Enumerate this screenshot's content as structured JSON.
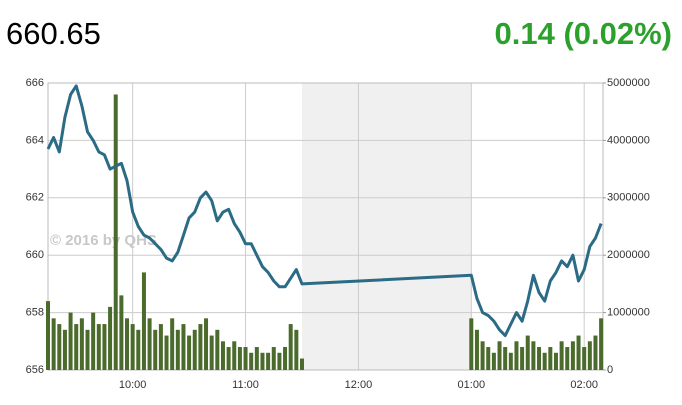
{
  "header": {
    "price": "660.65",
    "change": "0.14 (0.02%)"
  },
  "chart_data": {
    "type": "line",
    "watermark": "© 2016 by QHS",
    "x": [
      555,
      558,
      561,
      564,
      567,
      570,
      573,
      576,
      579,
      582,
      585,
      588,
      591,
      594,
      597,
      600,
      603,
      606,
      609,
      612,
      615,
      618,
      621,
      624,
      627,
      630,
      633,
      636,
      639,
      642,
      645,
      648,
      651,
      654,
      657,
      660,
      663,
      666,
      669,
      672,
      675,
      678,
      681,
      684,
      687,
      690,
      780,
      783,
      786,
      789,
      792,
      795,
      798,
      801,
      804,
      807,
      810,
      813,
      816,
      819,
      822,
      825,
      828,
      831,
      834,
      837,
      840,
      843,
      846,
      849
    ],
    "series": [
      {
        "color": "#2b6b86",
        "values": [
          663.7,
          664.1,
          663.6,
          664.8,
          665.6,
          665.9,
          665.2,
          664.3,
          664.0,
          663.6,
          663.5,
          663.0,
          663.1,
          663.2,
          662.6,
          661.5,
          661.0,
          660.7,
          660.6,
          660.4,
          660.2,
          659.9,
          659.8,
          660.1,
          660.7,
          661.3,
          661.5,
          662.0,
          662.2,
          661.9,
          661.2,
          661.5,
          661.6,
          661.1,
          660.8,
          660.4,
          660.4,
          660.0,
          659.6,
          659.4,
          659.1,
          658.9,
          658.9,
          659.2,
          659.5,
          659.0,
          659.3,
          658.5,
          658.0,
          657.9,
          657.7,
          657.4,
          657.2,
          657.6,
          658.0,
          657.7,
          658.4,
          659.3,
          658.7,
          658.4,
          659.1,
          659.4,
          659.8,
          659.6,
          660.0,
          659.1,
          659.5,
          660.3,
          660.6,
          661.1
        ]
      },
      {
        "color": "#4a6b2c",
        "type": "bar",
        "axis": "y2",
        "values": [
          1200000,
          900000,
          800000,
          700000,
          1000000,
          800000,
          900000,
          700000,
          1000000,
          800000,
          800000,
          1100000,
          4800000,
          1300000,
          900000,
          800000,
          700000,
          1700000,
          900000,
          700000,
          800000,
          600000,
          900000,
          700000,
          800000,
          600000,
          700000,
          800000,
          900000,
          600000,
          700000,
          500000,
          400000,
          500000,
          400000,
          400000,
          300000,
          400000,
          300000,
          300000,
          400000,
          300000,
          400000,
          800000,
          700000,
          200000,
          900000,
          700000,
          500000,
          400000,
          300000,
          500000,
          400000,
          300000,
          500000,
          400000,
          600000,
          500000,
          400000,
          300000,
          400000,
          300000,
          500000,
          400000,
          500000,
          600000,
          400000,
          500000,
          600000,
          900000
        ]
      }
    ],
    "xlim": [
      555,
      850
    ],
    "xticks": [
      {
        "value": 600,
        "label": "10:00"
      },
      {
        "value": 660,
        "label": "11:00"
      },
      {
        "value": 720,
        "label": "12:00"
      },
      {
        "value": 780,
        "label": "01:00"
      },
      {
        "value": 840,
        "label": "02:00"
      }
    ],
    "ylim": [
      656,
      666
    ],
    "yticks": [
      656,
      658,
      660,
      662,
      664,
      666
    ],
    "y2lim": [
      0,
      5000000
    ],
    "y2ticks": [
      0,
      1000000,
      2000000,
      3000000,
      4000000,
      5000000
    ],
    "shaded_range": [
      690,
      780
    ],
    "grid": true
  }
}
